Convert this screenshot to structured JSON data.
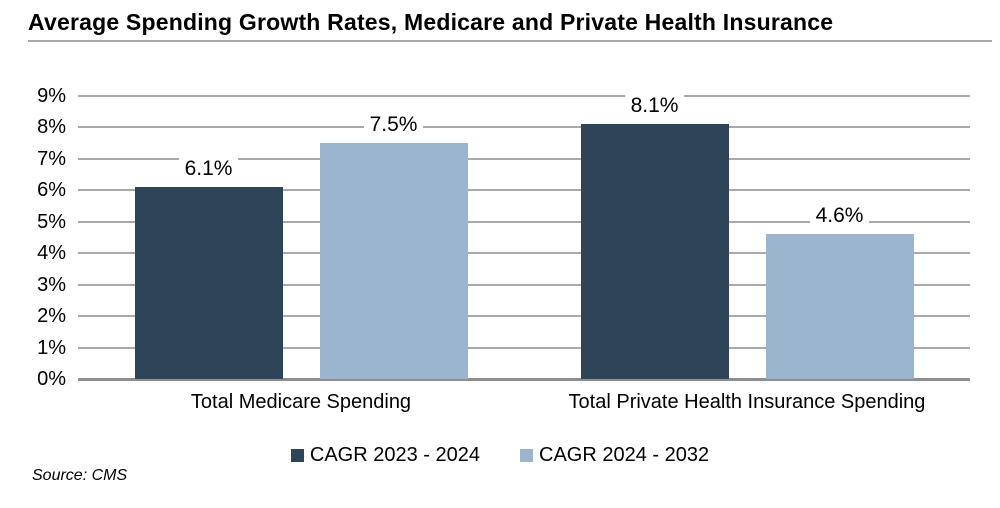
{
  "title": "Average Spending Growth Rates, Medicare and Private Health Insurance",
  "source": "Source: CMS",
  "colors": {
    "series_dark": "#2e4459",
    "series_light": "#9cb5cf",
    "gridline": "#a9a9a9",
    "baseline": "#8f8f8f",
    "title_rule": "#a9a9a9",
    "text": "#000000"
  },
  "chart_data": {
    "type": "bar",
    "title": "Average Spending Growth Rates, Medicare and Private Health Insurance",
    "categories": [
      "Total Medicare Spending",
      "Total Private Health Insurance Spending"
    ],
    "series": [
      {
        "name": "CAGR 2023 - 2024",
        "color": "#2e4459",
        "values": [
          6.1,
          8.1
        ],
        "data_labels": [
          "6.1%",
          "8.1%"
        ]
      },
      {
        "name": "CAGR 2024 - 2032",
        "color": "#9cb5cf",
        "values": [
          7.5,
          4.6
        ],
        "data_labels": [
          "7.5%",
          "4.6%"
        ]
      }
    ],
    "xlabel": "",
    "ylabel": "",
    "ylim": [
      0,
      9
    ],
    "ytick_step": 1,
    "ytick_labels": [
      "0%",
      "1%",
      "2%",
      "3%",
      "4%",
      "5%",
      "6%",
      "7%",
      "8%",
      "9%"
    ],
    "grid": true,
    "legend_position": "bottom",
    "source": "Source: CMS"
  }
}
